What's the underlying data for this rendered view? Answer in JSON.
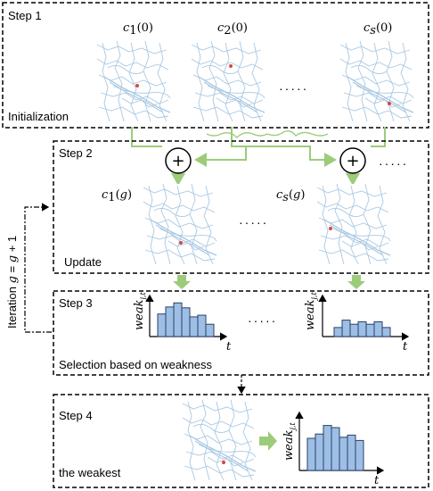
{
  "steps": {
    "step1": {
      "title": "Step 1",
      "caption": "Initialization"
    },
    "step2": {
      "title": "Step 2",
      "caption": "Update"
    },
    "step3": {
      "title": "Step 3",
      "caption": "Selection based on weakness"
    },
    "step4": {
      "title": "Step 4",
      "caption": "the weakest"
    }
  },
  "iteration_label": "Iteration g = g + 1",
  "labels": {
    "c1_0": "c₁(0)",
    "c2_0": "c₂(0)",
    "cs_0": "cₛ(0)",
    "c1_g": "c₁(g)",
    "cs_g": "cₛ(g)",
    "weak_axis": "weakⱼ,ₜ",
    "t_axis": "t",
    "ellipsis": "·····",
    "plus": "+"
  },
  "histograms": {
    "step3_left": [
      0.55,
      0.72,
      0.82,
      0.7,
      0.48,
      0.52,
      0.3
    ],
    "step3_right": [
      0.22,
      0.4,
      0.3,
      0.36,
      0.3,
      0.36,
      0.22
    ],
    "step4": [
      0.6,
      0.68,
      0.84,
      0.8,
      0.62,
      0.66,
      0.56
    ]
  },
  "colors": {
    "bar_fill": "#9dbfe6",
    "bar_stroke": "#2a3f66",
    "arrow_green": "#9ccc7a",
    "map_line": "#a9c8e2",
    "map_point": "#d9483b"
  }
}
